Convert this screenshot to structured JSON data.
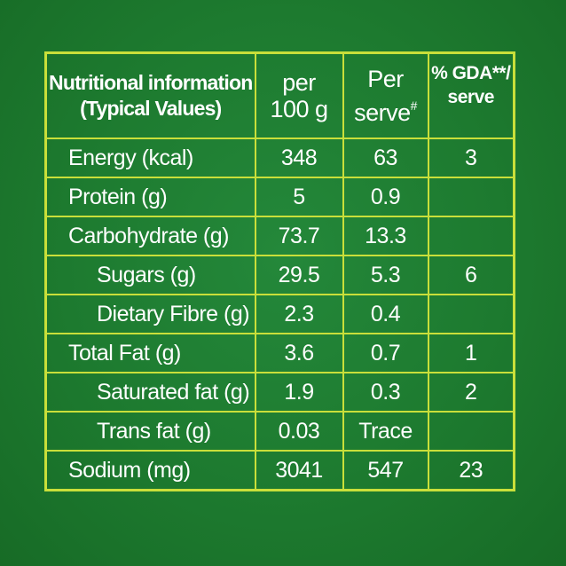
{
  "header": {
    "label_line1": "Nutritional information",
    "label_line2": "(Typical Values)",
    "per100_line1": "per",
    "per100_line2": "100 g",
    "serve_line1": "Per",
    "serve_line2": "serve",
    "serve_mark": "#",
    "gda_line1": "% GDA**/",
    "gda_line2": "serve"
  },
  "rows": [
    {
      "label": "Energy (kcal)",
      "per100": "348",
      "serve": "63",
      "gda": "3"
    },
    {
      "label": "Protein (g)",
      "per100": "5",
      "serve": "0.9",
      "gda": ""
    },
    {
      "label": "Carbohydrate (g)",
      "per100": "73.7",
      "serve": "13.3",
      "gda": ""
    },
    {
      "label": "Sugars (g)",
      "per100": "29.5",
      "serve": "5.3",
      "gda": "6"
    },
    {
      "label": "Dietary Fibre (g)",
      "per100": "2.3",
      "serve": "0.4",
      "gda": ""
    },
    {
      "label": "Total Fat (g)",
      "per100": "3.6",
      "serve": "0.7",
      "gda": "1"
    },
    {
      "label": "Saturated fat (g)",
      "per100": "1.9",
      "serve": "0.3",
      "gda": "2"
    },
    {
      "label": "Trans fat (g)",
      "per100": "0.03",
      "serve": "Trace",
      "gda": ""
    },
    {
      "label": "Sodium (mg)",
      "per100": "3041",
      "serve": "547",
      "gda": "23"
    }
  ],
  "colors": {
    "background": "#1f7a2c",
    "border": "#c9df3a",
    "text": "#ffffff"
  }
}
